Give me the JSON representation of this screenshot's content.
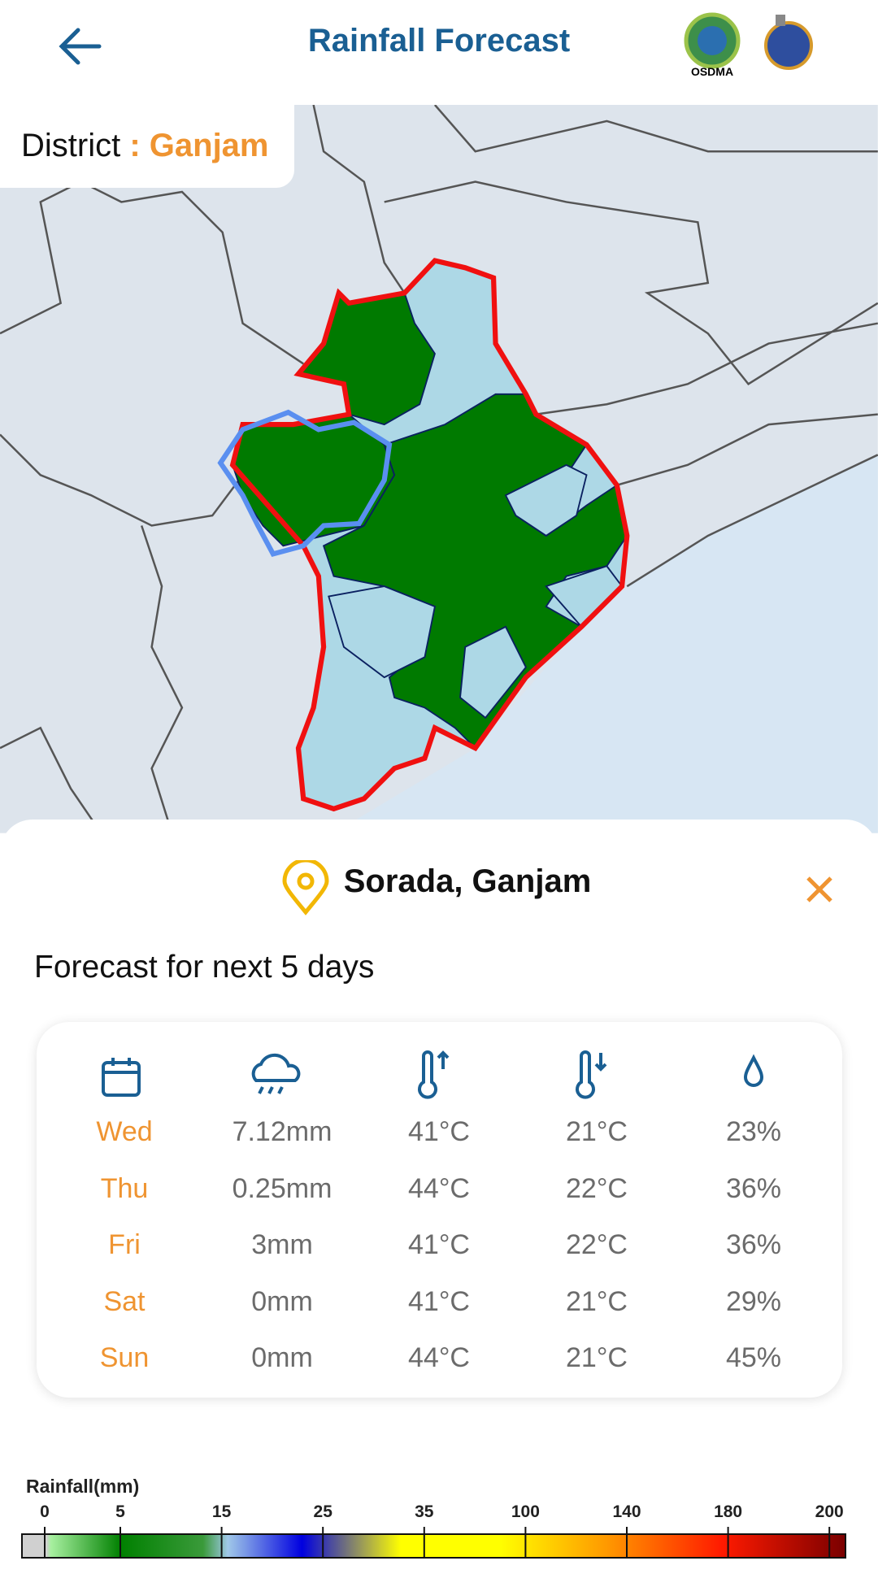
{
  "header": {
    "title": "Rainfall Forecast",
    "logo_text": "OSDMA"
  },
  "district": {
    "label": "District",
    "name": ": Ganjam"
  },
  "location": "Sorada, Ganjam",
  "forecast": {
    "heading": "Forecast for next 5 days",
    "rows": [
      [
        "Wed",
        "7.12mm",
        "41°C",
        "21°C",
        "23%"
      ],
      [
        "Thu",
        "0.25mm",
        "44°C",
        "22°C",
        "36%"
      ],
      [
        "Fri",
        "3mm",
        "41°C",
        "22°C",
        "36%"
      ],
      [
        "Sat",
        "0mm",
        "41°C",
        "21°C",
        "29%"
      ],
      [
        "Sun",
        "0mm",
        "44°C",
        "21°C",
        "45%"
      ]
    ]
  },
  "legend": {
    "title": "Rainfall(mm)",
    "ticks": [
      0,
      5,
      15,
      25,
      35,
      100,
      140,
      180,
      200
    ]
  }
}
